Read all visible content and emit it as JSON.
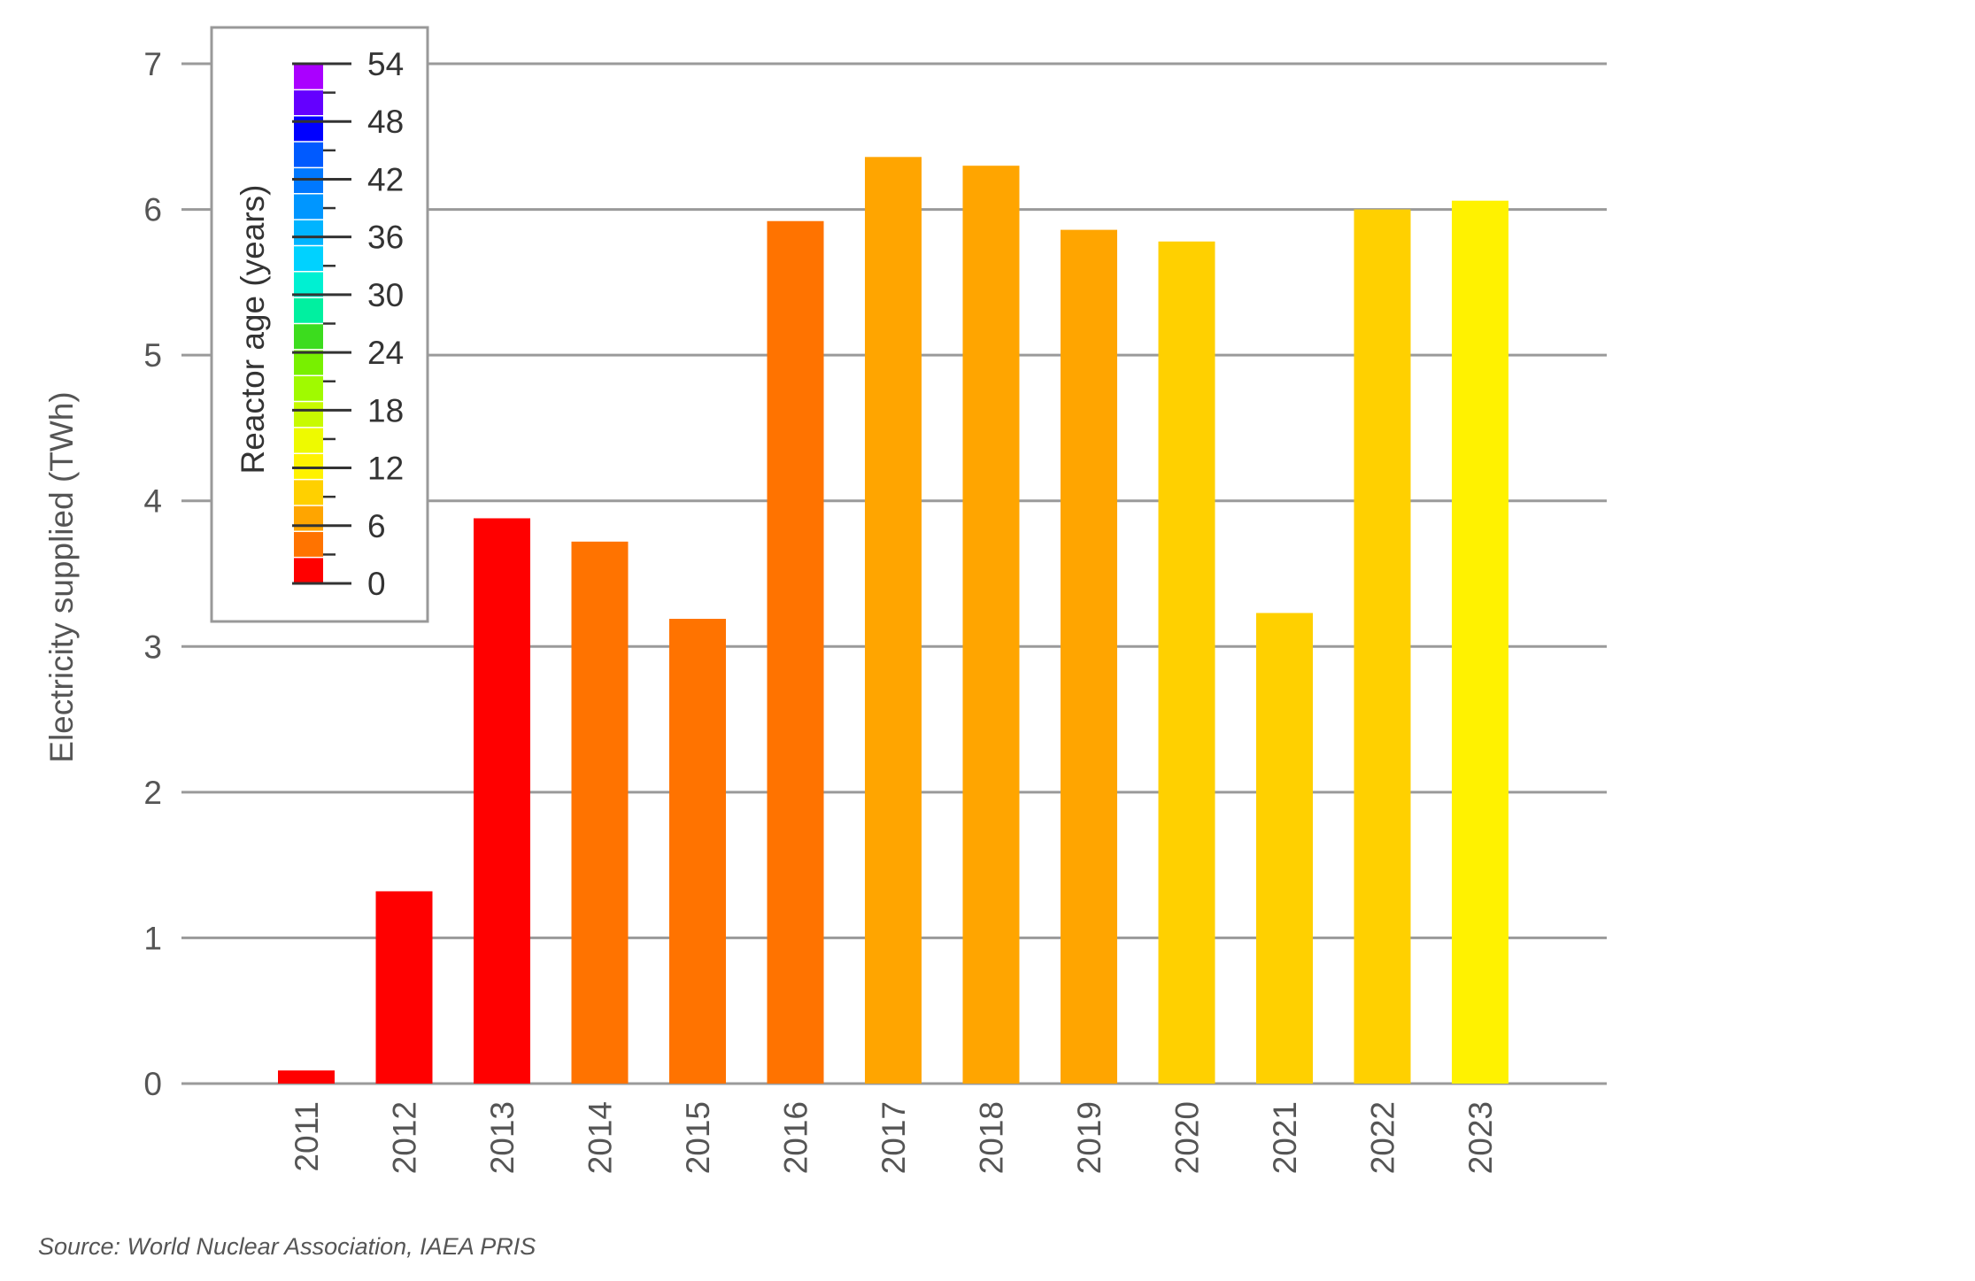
{
  "chart_data": {
    "type": "bar",
    "title": "",
    "xlabel": "",
    "ylabel": "Electricity supplied  (TWh)",
    "ylim": [
      0,
      7
    ],
    "yticks": [
      0,
      1,
      2,
      3,
      4,
      5,
      6,
      7
    ],
    "grid": true,
    "categories": [
      "2011",
      "2012",
      "2013",
      "2014",
      "2015",
      "2016",
      "2017",
      "2018",
      "2019",
      "2020",
      "2021",
      "2022",
      "2023"
    ],
    "values": [
      0.09,
      1.32,
      3.88,
      3.72,
      3.19,
      5.92,
      6.36,
      6.3,
      5.86,
      5.78,
      3.23,
      6.0,
      6.06
    ],
    "reactor_age_years": [
      0,
      1,
      2,
      3,
      4,
      5,
      6,
      7,
      8,
      9,
      10,
      11,
      12
    ],
    "colorbar": {
      "label": "Reactor age (years)",
      "min": 0,
      "max": 54,
      "ticks": [
        0,
        6,
        12,
        18,
        24,
        30,
        36,
        42,
        48,
        54
      ],
      "step": 3,
      "colors": [
        "#ff0000",
        "#ff7300",
        "#ffa500",
        "#ffd000",
        "#fff200",
        "#eefa00",
        "#c8fa00",
        "#a0fa00",
        "#78f000",
        "#3cdc1e",
        "#00f0a0",
        "#00f0d2",
        "#00d2ff",
        "#00b4ff",
        "#0096ff",
        "#0078ff",
        "#005aff",
        "#0000ff",
        "#6400ff",
        "#aa00ff"
      ],
      "placement": "top-left"
    },
    "bar_colors": [
      "#ff0000",
      "#ff0000",
      "#ff0000",
      "#ff7300",
      "#ff7300",
      "#ff7300",
      "#ffa500",
      "#ffa500",
      "#ffa500",
      "#ffd000",
      "#ffd000",
      "#ffd000",
      "#fff200"
    ]
  },
  "footer": {
    "source": "Source: World Nuclear Association, IAEA PRIS"
  }
}
